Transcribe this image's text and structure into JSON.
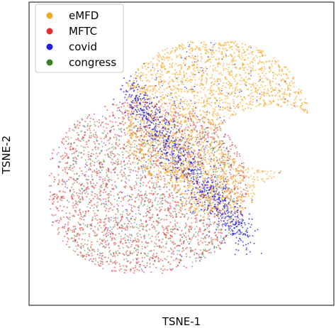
{
  "chart_data": {
    "type": "scatter",
    "title": "",
    "xlabel": "TSNE-1",
    "ylabel": "TSNE-2",
    "xticks": [],
    "yticks": [],
    "grid": false,
    "legend_position": "top-left",
    "series": [
      {
        "name": "eMFD",
        "color": "#f5a623"
      },
      {
        "name": "MFTC",
        "color": "#e0302e"
      },
      {
        "name": "covid",
        "color": "#1f1fe0"
      },
      {
        "name": "congress",
        "color": "#3a7f2a"
      }
    ],
    "point_distribution": "dense overlapping clusters; eMFD forms a curved hook on the upper right, MFTC a large blob on the lower left, covid along the boundary between them, congress mixed inside the MFTC blob"
  }
}
